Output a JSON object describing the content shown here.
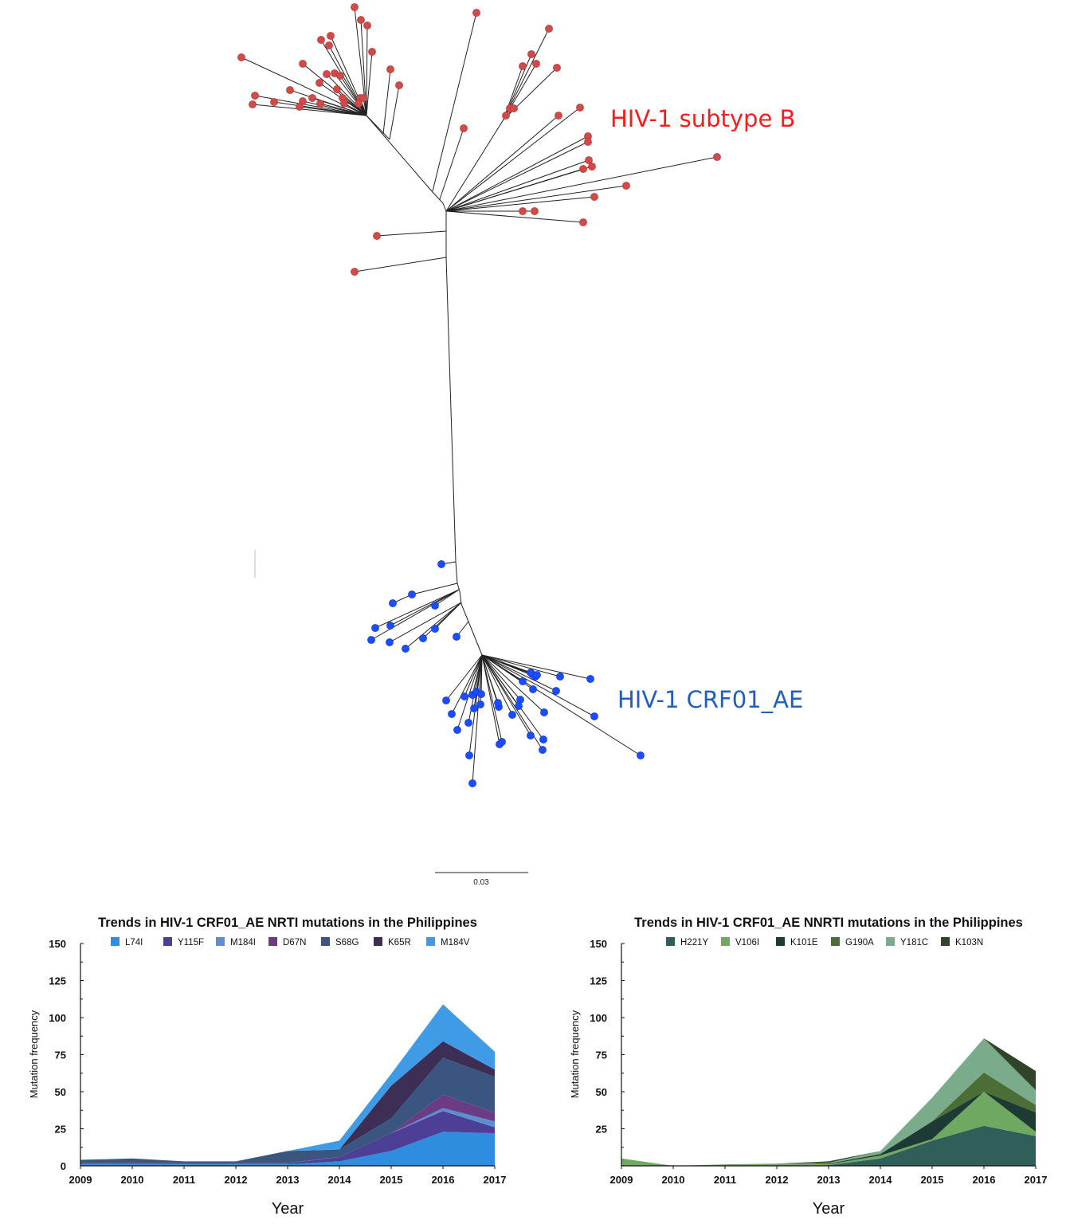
{
  "tree": {
    "clade_labels": [
      {
        "text": "HIV-1 subtype B",
        "color": "#ff1a1a",
        "dot_color": "#d04a4a"
      },
      {
        "text": "HIV-1 CRF01_AE",
        "color": "#1f5fbf",
        "dot_color": "#1a4dff"
      }
    ],
    "scale_bar_label": "0.03"
  },
  "chart_data": [
    {
      "type": "area",
      "stacked": true,
      "title": "Trends in HIV-1 CRF01_AE NRTI mutations in the Philippines",
      "xlabel": "Year",
      "ylabel": "Mutation frequency",
      "x": [
        2009,
        2010,
        2011,
        2012,
        2013,
        2014,
        2015,
        2016,
        2017
      ],
      "ylim": [
        0,
        150
      ],
      "yticks": [
        0,
        25,
        50,
        75,
        100,
        125,
        150
      ],
      "grid": false,
      "legend": "top",
      "series": [
        {
          "name": "L74I",
          "color": "#2f8de0",
          "values": [
            1,
            1,
            1,
            1,
            1,
            3,
            10,
            23,
            22
          ]
        },
        {
          "name": "Y115F",
          "color": "#4e3f96",
          "values": [
            0.5,
            0.5,
            0.5,
            0.5,
            0.5,
            3,
            12,
            14,
            4
          ]
        },
        {
          "name": "M184I",
          "color": "#5b8fd0",
          "values": [
            0,
            0,
            0,
            0,
            0,
            0,
            0,
            2,
            4
          ]
        },
        {
          "name": "D67N",
          "color": "#6b3b86",
          "values": [
            0.5,
            0.5,
            0.5,
            0.5,
            0.5,
            0,
            0,
            9,
            6
          ]
        },
        {
          "name": "S68G",
          "color": "#3a5580",
          "values": [
            2,
            3,
            1,
            1,
            8,
            5,
            10,
            25,
            24
          ]
        },
        {
          "name": "K65R",
          "color": "#3d2e55",
          "values": [
            0,
            0,
            0,
            0,
            0,
            0,
            22,
            11,
            5
          ]
        },
        {
          "name": "M184V",
          "color": "#3f9be6",
          "values": [
            0,
            0,
            0,
            0,
            0,
            6,
            8,
            25,
            12
          ]
        }
      ]
    },
    {
      "type": "area",
      "stacked": true,
      "title": "Trends in HIV-1 CRF01_AE NNRTI mutations in the Philippines",
      "xlabel": "Year",
      "ylabel": "Mutation frequency",
      "x": [
        2009,
        2010,
        2011,
        2012,
        2013,
        2014,
        2015,
        2016,
        2017
      ],
      "ylim": [
        0,
        150
      ],
      "yticks": [
        25,
        50,
        75,
        100,
        125,
        150
      ],
      "grid": false,
      "legend": "top",
      "series": [
        {
          "name": "H221Y",
          "color": "#2f5f58",
          "values": [
            0,
            0,
            0,
            0,
            0.5,
            5,
            17,
            27,
            20
          ]
        },
        {
          "name": "V106I",
          "color": "#6fa860",
          "values": [
            5,
            0,
            1,
            1.5,
            0.5,
            2,
            1,
            23,
            3
          ]
        },
        {
          "name": "K101E",
          "color": "#1e3a35",
          "values": [
            0,
            0,
            0,
            0,
            0.5,
            1,
            12,
            0,
            13
          ]
        },
        {
          "name": "G190A",
          "color": "#4a6e35",
          "values": [
            0,
            0,
            0,
            0,
            0,
            0,
            0,
            13,
            5
          ]
        },
        {
          "name": "Y181C",
          "color": "#7aab8a",
          "values": [
            0,
            0,
            0,
            0,
            0.5,
            2,
            16,
            23,
            10
          ]
        },
        {
          "name": "K103N",
          "color": "#2f4428",
          "values": [
            0,
            0,
            0,
            0,
            1,
            0,
            0,
            0,
            13
          ]
        }
      ]
    }
  ]
}
